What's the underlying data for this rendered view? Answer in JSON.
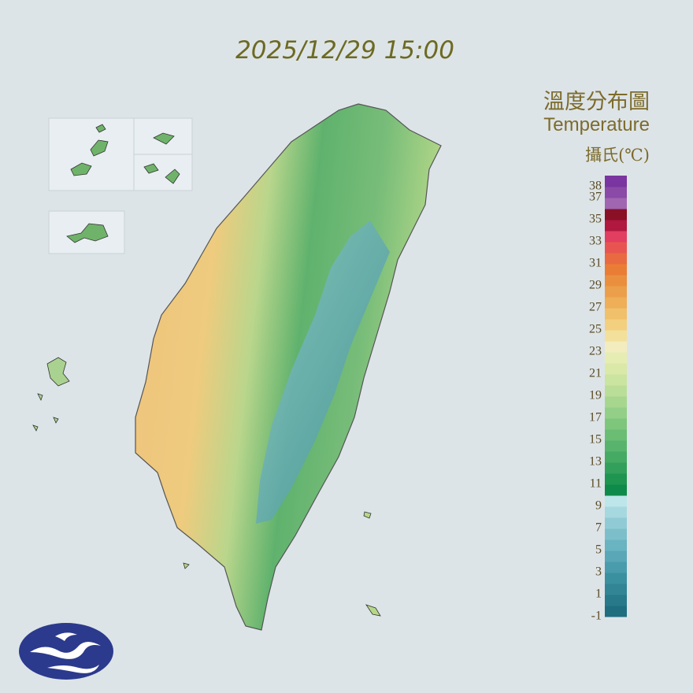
{
  "header": {
    "timestamp": "2025/12/29 15:00",
    "title_zh": "溫度分布圖",
    "title_en": "Temperature",
    "unit": "攝氏(℃)"
  },
  "legend": {
    "min": -1,
    "max": 39,
    "labels": [
      38,
      37,
      35,
      33,
      31,
      29,
      27,
      25,
      23,
      21,
      19,
      17,
      15,
      13,
      11,
      9,
      7,
      5,
      3,
      1,
      -1
    ],
    "colors": [
      "#1f6e80",
      "#28798a",
      "#318595",
      "#3b90a0",
      "#4a9cac",
      "#5aa8b7",
      "#6ab3c1",
      "#7cbfcb",
      "#90cbd5",
      "#a6d8df",
      "#bde6ea",
      "#0e8a4a",
      "#1f9552",
      "#32a05b",
      "#45aa63",
      "#58b46c",
      "#6bbd74",
      "#7fc67d",
      "#93cf86",
      "#a7d78f",
      "#bade98",
      "#cbe49f",
      "#dae9a7",
      "#e6edb2",
      "#f2ecbe",
      "#f3e09a",
      "#f2d07f",
      "#f0c06a",
      "#eeaf58",
      "#ec9f4a",
      "#ea8f3e",
      "#e97d36",
      "#e96a40",
      "#e85550",
      "#e23e5f",
      "#b01840",
      "#8a1025",
      "#a066b0",
      "#8a4aa6",
      "#7a35a0"
    ]
  }
}
